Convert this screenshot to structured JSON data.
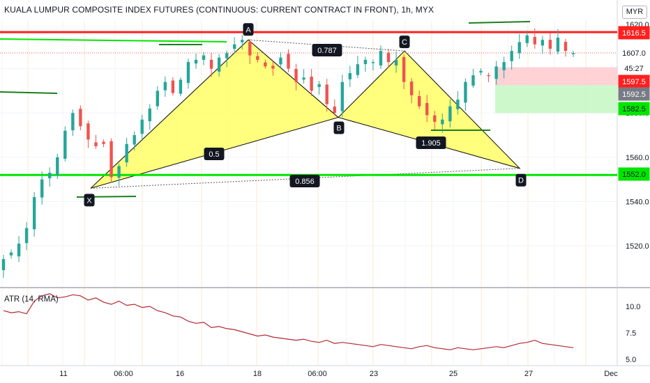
{
  "header": {
    "title": "KUALA LUMPUR COMPOSITE INDEX FUTURES (CONTINUOUS: CURRENT CONTRACT IN FRONT), 1h, MYX",
    "currency": "MYR"
  },
  "price_axis": {
    "ticks": [
      "1620.0",
      "1600.0",
      "1580.0",
      "1560.0",
      "1540.0",
      "1520.0"
    ],
    "badges": [
      {
        "text": "1616.5",
        "color": "#ff1f1f",
        "text_color": "#ffffff"
      },
      {
        "text": "1607.0",
        "color": "#ffffff",
        "text_color": "#131722"
      },
      {
        "text": "45:27",
        "color": "#ffffff",
        "text_color": "#131722"
      },
      {
        "text": "1597.5",
        "color": "#ff1f1f",
        "text_color": "#ffffff"
      },
      {
        "text": "1592.5",
        "color": "#787b86",
        "text_color": "#ffffff"
      },
      {
        "text": "1582.5",
        "color": "#00e600",
        "text_color": "#131722"
      },
      {
        "text": "1552.0",
        "color": "#00e600",
        "text_color": "#131722"
      }
    ]
  },
  "time_axis": {
    "ticks": [
      "11",
      "06:00",
      "16",
      "18",
      "06:00",
      "23",
      "25",
      "27",
      "Dec"
    ]
  },
  "pattern": {
    "points": [
      "X",
      "A",
      "B",
      "C",
      "D"
    ],
    "ratios": [
      "0.787",
      "0.5",
      "1.905",
      "0.856"
    ]
  },
  "levels": {
    "resistance": 1616.5,
    "support": 1552.0
  },
  "position_box": {
    "stop": 1597.5,
    "entry": 1592.5,
    "target": 1582.5
  },
  "atr": {
    "title": "ATR (14, RMA)",
    "ticks": [
      "10.0",
      "7.5",
      "5.0"
    ]
  },
  "colors": {
    "up": "#26a69a",
    "down": "#ef5350",
    "pattern_fill": "#ffff66",
    "resistance": "#ff1f1f",
    "support": "#00e600",
    "atr_line": "#b22833"
  },
  "chart_data": {
    "type": "candlestick",
    "title": "KUALA LUMPUR COMPOSITE INDEX FUTURES (CONTINUOUS: CURRENT CONTRACT IN FRONT), 1h, MYX",
    "ylabel": "",
    "xlabel": "",
    "ylim": [
      1510,
      1622
    ],
    "harmonic_pattern": {
      "X": 1546,
      "A": 1613,
      "B": 1578,
      "C": 1608,
      "D": 1555,
      "AB_XA": 0.5,
      "BC_AB": 0.787,
      "CD_BC": 1.905,
      "AD_XA": 0.856
    },
    "horizontal_lines": [
      1616.5,
      1552.0
    ],
    "last_price": 1607.0,
    "series": [
      {
        "name": "Close",
        "values": [
          1514,
          1517,
          1521,
          1528,
          1542,
          1550,
          1553,
          1560,
          1572,
          1580,
          1574,
          1568,
          1565,
          1566,
          1551,
          1556,
          1566,
          1570,
          1577,
          1582,
          1590,
          1594,
          1589,
          1595,
          1603,
          1604,
          1606,
          1600,
          1605,
          1607,
          1611,
          1613,
          1606,
          1604,
          1601,
          1600,
          1605,
          1600,
          1594,
          1596,
          1590,
          1593,
          1584,
          1580,
          1594,
          1598,
          1602,
          1604,
          1603,
          1608,
          1603,
          1604,
          1594,
          1588,
          1583,
          1579,
          1576,
          1577,
          1583,
          1586,
          1594,
          1597,
          1599,
          1597,
          1601,
          1603,
          1608,
          1612,
          1615,
          1611,
          1613,
          1609,
          1614,
          1608,
          1607
        ]
      },
      {
        "name": "ATR (14, RMA)",
        "values": [
          9.6,
          9.4,
          9.5,
          9.3,
          10.5,
          11.0,
          11.2,
          10.8,
          10.9,
          11.1,
          11.0,
          10.6,
          10.8,
          10.4,
          10.2,
          10.5,
          10.1,
          10.2,
          9.9,
          10.0,
          9.6,
          9.4,
          9.1,
          9.0,
          8.6,
          8.4,
          8.5,
          8.0,
          8.1,
          7.9,
          7.8,
          7.6,
          7.4,
          7.2,
          7.3,
          7.1,
          7.0,
          6.9,
          6.8,
          6.9,
          6.7,
          6.6,
          6.8,
          6.5,
          6.6,
          6.5,
          6.4,
          6.3,
          6.2,
          6.4,
          6.3,
          6.2,
          6.1,
          6.0,
          6.2,
          6.3,
          6.1,
          6.0,
          5.9,
          6.1,
          6.0,
          5.9,
          6.0,
          6.1,
          6.2,
          6.1,
          6.3,
          6.5,
          6.6,
          6.8,
          6.5,
          6.4,
          6.3,
          6.2,
          6.1
        ]
      }
    ]
  }
}
